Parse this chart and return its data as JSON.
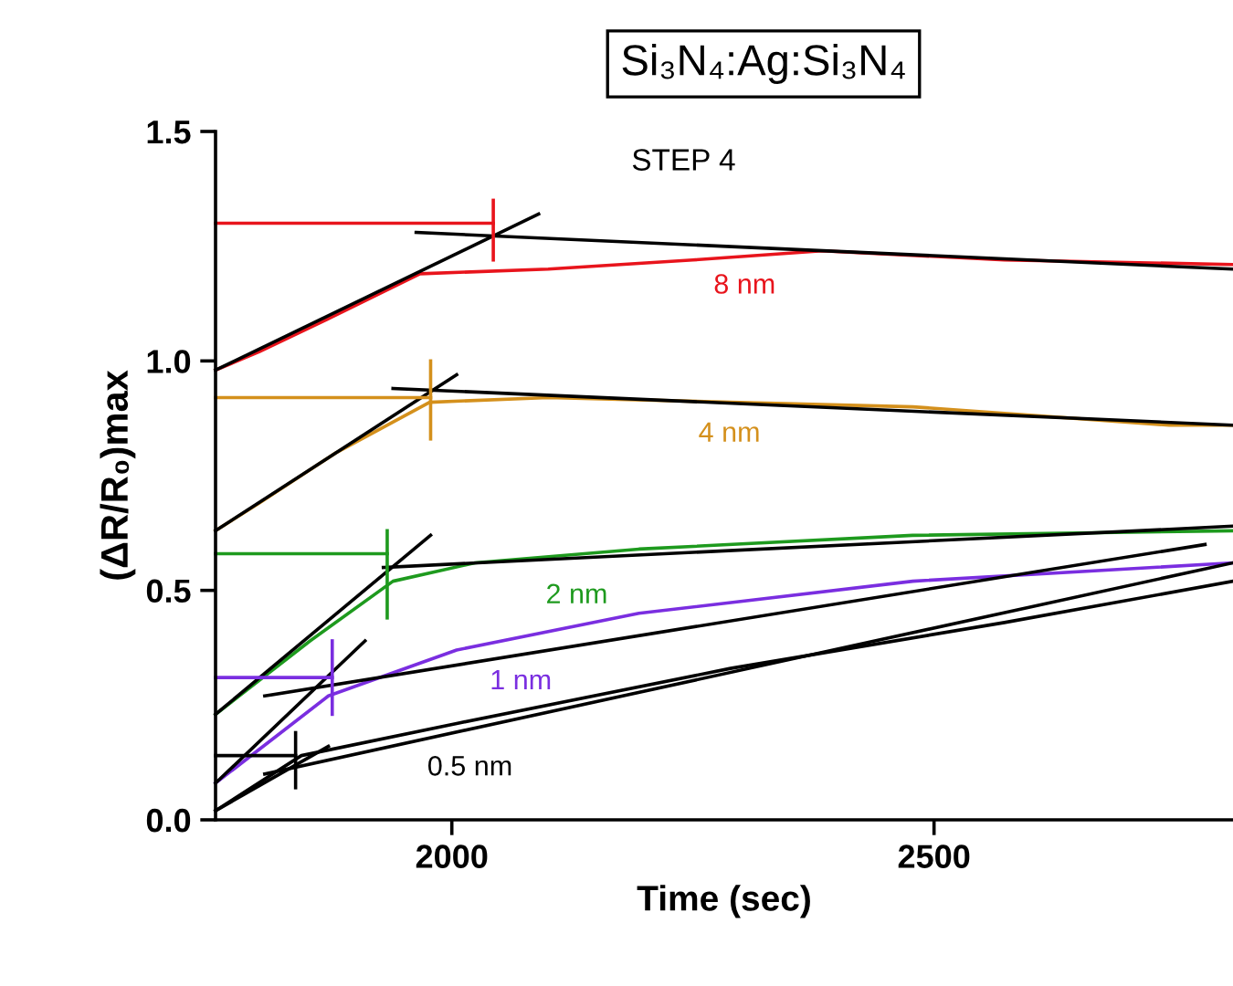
{
  "chart_data": {
    "type": "line",
    "title": "Si₃N₄:Ag:Si₃N₄",
    "xlabel": "Time (sec)",
    "ylabel": "(ΔR/R₀)max",
    "xlim": [
      1755,
      2810
    ],
    "ylim": [
      0,
      1.5
    ],
    "xticks": [
      2000,
      2500
    ],
    "yticks": [
      {
        "value": 0,
        "label": "0.0"
      },
      0.5,
      {
        "value": 1,
        "label": "1.0"
      },
      1.5
    ],
    "grid": false,
    "legend": false,
    "marker": "none",
    "line_style": "solid",
    "series": [
      {
        "color": "#e8141c",
        "x": [
          1755,
          1800,
          1870,
          1967,
          2100,
          2250,
          2384,
          2573,
          2810
        ],
        "values": [
          0.98,
          1.02,
          1.09,
          1.19,
          1.2,
          1.22,
          1.24,
          1.22,
          1.21
        ]
      },
      {
        "color": "#d4901c",
        "x": [
          1755,
          1800,
          1880,
          1977,
          2100,
          2289,
          2478,
          2744,
          2810
        ],
        "values": [
          0.63,
          0.69,
          0.8,
          0.91,
          0.92,
          0.91,
          0.9,
          0.86,
          0.86
        ]
      },
      {
        "color": "#1e9a1e",
        "x": [
          1755,
          1853,
          1939,
          2024,
          2194,
          2478,
          2810
        ],
        "values": [
          0.23,
          0.39,
          0.52,
          0.56,
          0.59,
          0.62,
          0.63
        ]
      },
      {
        "color": "#7a2ee0",
        "x": [
          1755,
          1872,
          2005,
          2194,
          2478,
          2810
        ],
        "values": [
          0.08,
          0.27,
          0.37,
          0.45,
          0.52,
          0.56
        ]
      },
      {
        "color": "#000000",
        "x": [
          1755,
          1844,
          2005,
          2289,
          2573,
          2810
        ],
        "values": [
          0.02,
          0.14,
          0.21,
          0.33,
          0.43,
          0.52
        ]
      },
      {
        "color": "#000000",
        "x": [
          1755,
          2090
        ],
        "values": [
          0.98,
          1.32
        ]
      },
      {
        "color": "#000000",
        "x": [
          1963,
          2810
        ],
        "values": [
          1.28,
          1.2
        ]
      },
      {
        "color": "#000000",
        "x": [
          1755,
          2005
        ],
        "values": [
          0.63,
          0.97
        ]
      },
      {
        "color": "#000000",
        "x": [
          1939,
          2810
        ],
        "values": [
          0.94,
          0.86
        ]
      },
      {
        "color": "#000000",
        "x": [
          1755,
          1978
        ],
        "values": [
          0.23,
          0.62
        ]
      },
      {
        "color": "#000000",
        "x": [
          1929,
          2810
        ],
        "values": [
          0.55,
          0.64
        ]
      },
      {
        "color": "#000000",
        "x": [
          1755,
          1910
        ],
        "values": [
          0.08,
          0.39
        ]
      },
      {
        "color": "#000000",
        "x": [
          1806,
          2781
        ],
        "values": [
          0.27,
          0.6
        ]
      },
      {
        "color": "#000000",
        "x": [
          1755,
          1872
        ],
        "values": [
          0.02,
          0.16
        ]
      },
      {
        "color": "#000000",
        "x": [
          1806,
          2810
        ],
        "values": [
          0.1,
          0.56
        ]
      },
      {
        "color": "#e8141c",
        "x": [
          1755,
          2043
        ],
        "values": [
          1.3,
          1.3
        ]
      },
      {
        "color": "#e8141c",
        "x": [
          2043,
          2043
        ],
        "values": [
          1.35,
          1.22
        ]
      },
      {
        "color": "#d4901c",
        "x": [
          1755,
          1978
        ],
        "values": [
          0.92,
          0.92
        ]
      },
      {
        "color": "#d4901c",
        "x": [
          1978,
          1978
        ],
        "values": [
          1.0,
          0.83
        ]
      },
      {
        "color": "#1e9a1e",
        "x": [
          1755,
          1933
        ],
        "values": [
          0.58,
          0.58
        ]
      },
      {
        "color": "#1e9a1e",
        "x": [
          1933,
          1933
        ],
        "values": [
          0.63,
          0.44
        ]
      },
      {
        "color": "#7a2ee0",
        "x": [
          1755,
          1876
        ],
        "values": [
          0.31,
          0.31
        ]
      },
      {
        "color": "#7a2ee0",
        "x": [
          1876,
          1876
        ],
        "values": [
          0.39,
          0.23
        ]
      },
      {
        "color": "#000000",
        "x": [
          1755,
          1838
        ],
        "values": [
          0.14,
          0.14
        ]
      },
      {
        "color": "#000000",
        "x": [
          1838,
          1838
        ],
        "values": [
          0.19,
          0.07
        ]
      }
    ],
    "annotations": [
      "STEP 4",
      "8 nm",
      "4 nm",
      "2 nm",
      "1 nm",
      "0.5 nm"
    ]
  }
}
